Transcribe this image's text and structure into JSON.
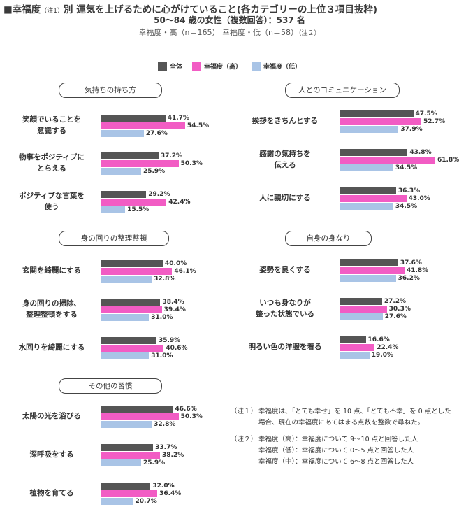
{
  "header": {
    "title_main": "■幸福度",
    "title_note": "（注1）",
    "title_rest": "別 運気を上げるために心がけていること(各カテゴリーの上位３項目抜粋)",
    "subtitle": "50～84 歳の女性（複数回答）：537 名",
    "groups_text": "幸福度・高（n＝165） 幸福度・低（n＝58）",
    "groups_note": "（注２）"
  },
  "colors": {
    "all": "#555555",
    "high": "#f25cc4",
    "low": "#a9c4e6"
  },
  "chart_data": {
    "type": "bar",
    "orientation": "horizontal",
    "series_names": [
      "全体",
      "幸福度（高）",
      "幸福度（低）"
    ],
    "value_unit": "%",
    "panels": [
      {
        "title": "気持ちの持ち方",
        "items": [
          {
            "label": [
              "笑顔でいることを",
              "意識する"
            ],
            "values": [
              41.7,
              54.5,
              27.6
            ]
          },
          {
            "label": [
              "物事をポジティブに",
              "とらえる"
            ],
            "values": [
              37.2,
              50.3,
              25.9
            ]
          },
          {
            "label": [
              "ポジティブな言葉を",
              "使う"
            ],
            "values": [
              29.2,
              42.4,
              15.5
            ]
          }
        ]
      },
      {
        "title": "人とのコミュニケーション",
        "items": [
          {
            "label": [
              "挨拶をきちんとする"
            ],
            "values": [
              47.5,
              52.7,
              37.9
            ]
          },
          {
            "label": [
              "感謝の気持ちを",
              "伝える"
            ],
            "values": [
              43.8,
              61.8,
              34.5
            ]
          },
          {
            "label": [
              "人に親切にする"
            ],
            "values": [
              36.3,
              43.0,
              34.5
            ]
          }
        ]
      },
      {
        "title": "身の回りの整理整頓",
        "items": [
          {
            "label": [
              "玄関を綺麗にする"
            ],
            "values": [
              40.0,
              46.1,
              32.8
            ]
          },
          {
            "label": [
              "身の回りの掃除、",
              "整理整頓をする"
            ],
            "values": [
              38.4,
              39.4,
              31.0
            ]
          },
          {
            "label": [
              "水回りを綺麗にする"
            ],
            "values": [
              35.9,
              40.6,
              31.0
            ]
          }
        ]
      },
      {
        "title": "自身の身なり",
        "items": [
          {
            "label": [
              "姿勢を良くする"
            ],
            "values": [
              37.6,
              41.8,
              36.2
            ]
          },
          {
            "label": [
              "いつも身なりが",
              "整った状態でいる"
            ],
            "values": [
              27.2,
              30.3,
              27.6
            ]
          },
          {
            "label": [
              "明るい色の洋服を着る"
            ],
            "values": [
              16.6,
              22.4,
              19.0
            ]
          }
        ]
      },
      {
        "title": "その他の習慣",
        "items": [
          {
            "label": [
              "太陽の光を浴びる"
            ],
            "values": [
              46.6,
              50.3,
              32.8
            ]
          },
          {
            "label": [
              "深呼吸をする"
            ],
            "values": [
              33.7,
              38.2,
              25.9
            ]
          },
          {
            "label": [
              "植物を育てる"
            ],
            "values": [
              32.0,
              36.4,
              20.7
            ]
          }
        ]
      }
    ]
  },
  "notes": {
    "n1_key": "（注１）",
    "n1_text": "幸福度は、「とても幸せ」を 10 点、「とても不幸」を 0 点とした場合、現在の幸福度にあてはまる点数を整数で尋ねた。",
    "n2_key": "（注２）",
    "n2_lines": [
      "幸福度（高）：幸福度について 9～10 点と回答した人",
      "幸福度（低）：幸福度について 0～5 点と回答した人",
      "幸福度（中）：幸福度について 6～8 点と回答した人"
    ]
  }
}
